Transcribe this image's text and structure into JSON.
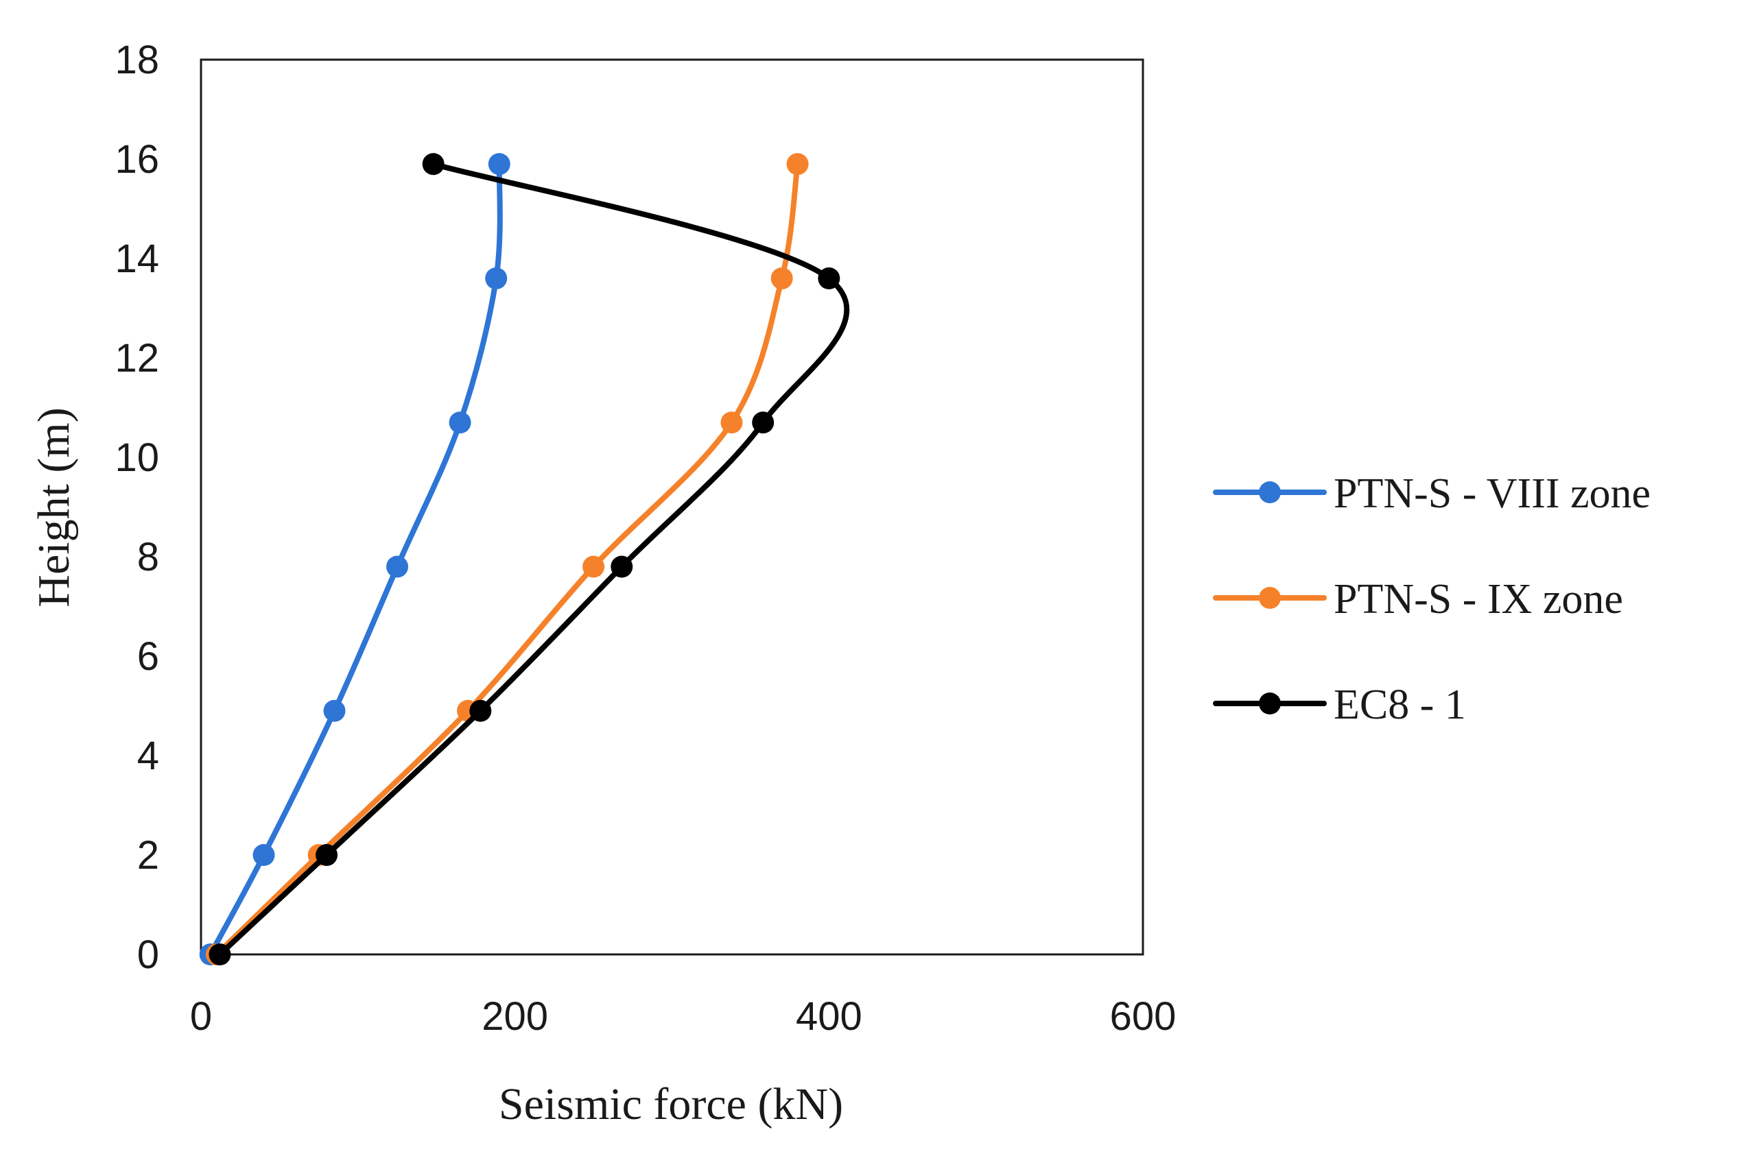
{
  "chart_data": {
    "type": "line",
    "title": "",
    "xlabel": "Seismic force (kN)",
    "ylabel": "Height (m)",
    "xlim": [
      0,
      600
    ],
    "ylim": [
      0,
      18
    ],
    "xticks": [
      0,
      200,
      400,
      600
    ],
    "yticks": [
      0,
      2,
      4,
      6,
      8,
      10,
      12,
      14,
      16,
      18
    ],
    "grid": false,
    "legend_position": "right",
    "series": [
      {
        "name": "PTN-S - VIII zone",
        "color": "#2E75D6",
        "x": [
          6,
          40,
          85,
          125,
          165,
          188,
          190
        ],
        "y": [
          0,
          2,
          4.9,
          7.8,
          10.7,
          13.6,
          15.9
        ]
      },
      {
        "name": "PTN-S - IX zone",
        "color": "#F5822A",
        "x": [
          10,
          75,
          170,
          250,
          338,
          370,
          380
        ],
        "y": [
          0,
          2,
          4.9,
          7.8,
          10.7,
          13.6,
          15.9
        ]
      },
      {
        "name": "EC8 - 1",
        "color": "#000000",
        "x": [
          12,
          80,
          178,
          268,
          358,
          400,
          148
        ],
        "y": [
          0,
          2,
          4.9,
          7.8,
          10.7,
          13.6,
          15.9
        ]
      }
    ]
  }
}
